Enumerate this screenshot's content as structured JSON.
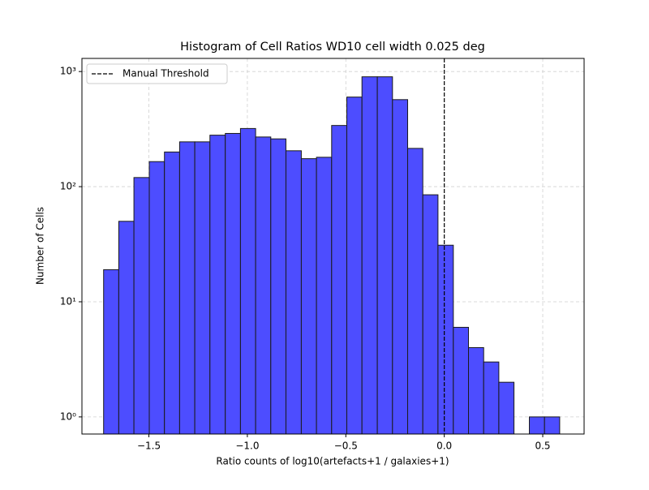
{
  "chart_data": {
    "type": "histogram",
    "title": "Histogram of Cell Ratios WD10 cell width 0.025 deg",
    "xlabel": "Ratio counts of log10(artefacts+1 / galaxies+1)",
    "ylabel": "Number of Cells",
    "bins": [
      -1.73,
      -1.653,
      -1.576,
      -1.498,
      -1.421,
      -1.344,
      -1.267,
      -1.19,
      -1.112,
      -1.035,
      -0.958,
      -0.881,
      -0.804,
      -0.726,
      -0.649,
      -0.572,
      -0.495,
      -0.418,
      -0.34,
      -0.263,
      -0.186,
      -0.109,
      -0.032,
      0.046,
      0.123,
      0.2,
      0.277,
      0.354,
      0.432,
      0.509,
      0.586
    ],
    "values": [
      19,
      50,
      120,
      165,
      200,
      245,
      245,
      280,
      290,
      320,
      270,
      260,
      205,
      175,
      180,
      340,
      600,
      900,
      900,
      570,
      215,
      85,
      31,
      6,
      4,
      3,
      2,
      0,
      1,
      1
    ],
    "color": "#4d4dff",
    "edgecolor": "#1a1a1a",
    "xlim": [
      -1.84,
      0.71
    ],
    "ylim": [
      0.71,
      1300
    ],
    "ylog": true,
    "xticks": [
      {
        "value": -1.5,
        "label": "−1.5"
      },
      {
        "value": -1.0,
        "label": "−1.0"
      },
      {
        "value": -0.5,
        "label": "−0.5"
      },
      {
        "value": 0,
        "label": "0.0"
      },
      0.5
    ],
    "yticks": [
      {
        "value": 1,
        "label": "10⁰"
      },
      {
        "value": 10,
        "label": "10¹"
      },
      {
        "value": 100,
        "label": "10²"
      },
      {
        "value": 1000,
        "label": "10³"
      }
    ],
    "grid": true,
    "threshold": {
      "value": 0,
      "label": "Manual Threshold"
    },
    "legend": "upper left"
  }
}
